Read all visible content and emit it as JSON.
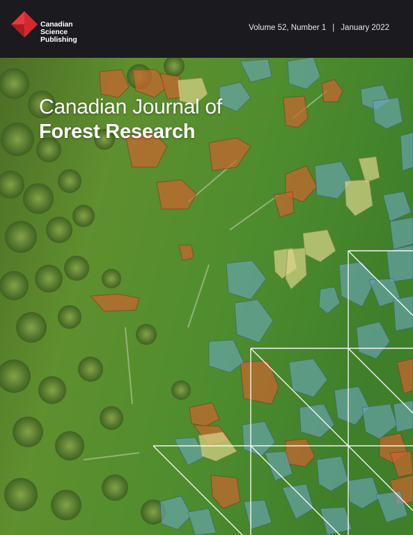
{
  "publisher": {
    "line1": "Canadian",
    "line2": "Science",
    "line3": "Publishing",
    "brand_color": "#d42a2f"
  },
  "issue": {
    "volume": "Volume 52, Number 1",
    "separator": "|",
    "date": "January 2022"
  },
  "journal": {
    "title_line1": "Canadian Journal of",
    "title_line2": "Forest Research"
  },
  "colors": {
    "header_bg": "#1b1a1f",
    "forest_green": "#4f8a2c",
    "crown_orange": "#c9652f",
    "crown_blue": "#6aa6b4",
    "crown_yellow": "#dcd58a"
  },
  "imagery": {
    "background": "aerial-forest-photo",
    "overlay": "segmented-tree-crowns",
    "grid": "triangular-white-grid-lines"
  }
}
